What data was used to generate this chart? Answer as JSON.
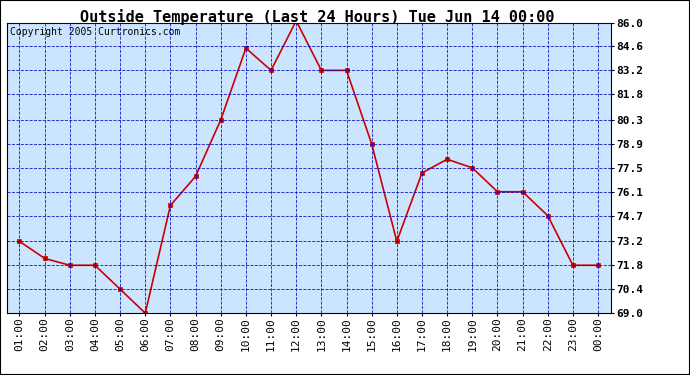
{
  "title": "Outside Temperature (Last 24 Hours) Tue Jun 14 00:00",
  "copyright": "Copyright 2005 Curtronics.com",
  "x_labels": [
    "01:00",
    "02:00",
    "03:00",
    "04:00",
    "05:00",
    "06:00",
    "07:00",
    "08:00",
    "09:00",
    "10:00",
    "11:00",
    "12:00",
    "13:00",
    "14:00",
    "15:00",
    "16:00",
    "17:00",
    "18:00",
    "19:00",
    "20:00",
    "21:00",
    "22:00",
    "23:00",
    "00:00"
  ],
  "y_values": [
    73.2,
    72.2,
    71.8,
    71.8,
    70.4,
    69.0,
    75.3,
    77.0,
    80.3,
    84.5,
    83.2,
    86.1,
    83.2,
    83.2,
    78.9,
    73.2,
    77.2,
    78.0,
    77.5,
    76.1,
    76.1,
    74.7,
    71.8,
    71.8
  ],
  "y_ticks": [
    69.0,
    70.4,
    71.8,
    73.2,
    74.7,
    76.1,
    77.5,
    78.9,
    80.3,
    81.8,
    83.2,
    84.6,
    86.0
  ],
  "y_min": 69.0,
  "y_max": 86.0,
  "line_color": "#cc0000",
  "marker_color": "#cc0000",
  "plot_bg_color": "#cce5ff",
  "outer_bg_color": "#ffffff",
  "grid_color": "#0000bb",
  "title_fontsize": 11,
  "copyright_fontsize": 7,
  "tick_fontsize": 8,
  "axis_label_color": "#000000",
  "title_color": "#000000"
}
